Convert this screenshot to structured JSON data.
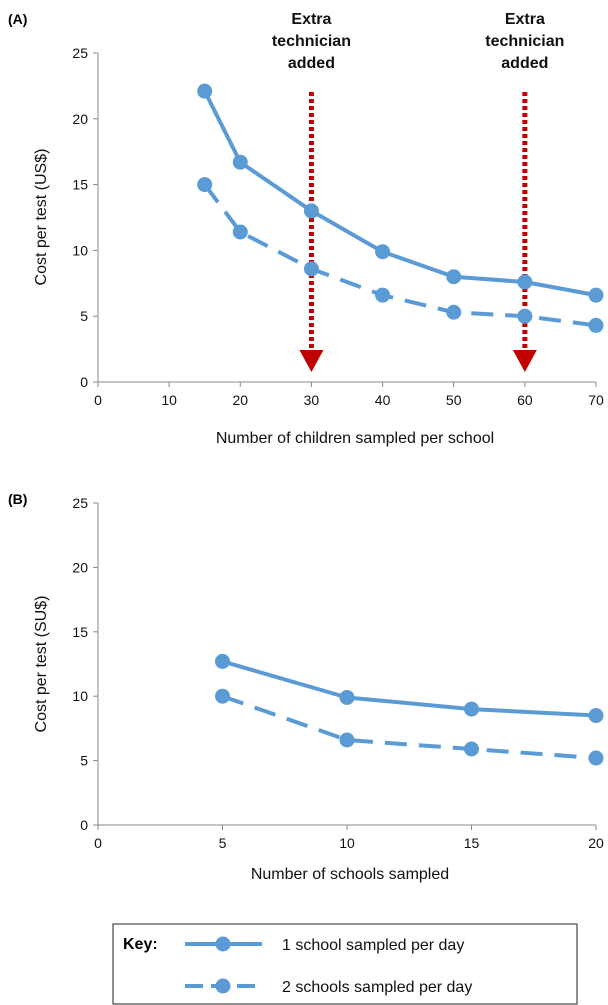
{
  "chart_data": [
    {
      "panel_label": "(A)",
      "type": "line",
      "xlabel": "Number of children sampled per school",
      "ylabel": "Cost per test (US$)",
      "xlim": [
        0,
        70
      ],
      "ylim": [
        0,
        25
      ],
      "xticks": [
        0,
        10,
        20,
        30,
        40,
        50,
        60,
        70
      ],
      "yticks": [
        0,
        5,
        10,
        15,
        20,
        25
      ],
      "grid": false,
      "series": [
        {
          "name": "1 school sampled per day",
          "style": "solid",
          "x": [
            15,
            20,
            30,
            40,
            50,
            60,
            70
          ],
          "y": [
            22.1,
            16.7,
            13.0,
            9.9,
            8.0,
            7.6,
            6.6
          ]
        },
        {
          "name": "2 schools sampled per day",
          "style": "dashed",
          "x": [
            15,
            20,
            30,
            40,
            50,
            60,
            70
          ],
          "y": [
            15.0,
            11.4,
            8.6,
            6.6,
            5.3,
            5.0,
            4.3
          ]
        }
      ],
      "annotations": [
        {
          "text": [
            "Extra",
            "technician",
            "added"
          ],
          "x": 30
        },
        {
          "text": [
            "Extra",
            "technician",
            "added"
          ],
          "x": 60
        }
      ]
    },
    {
      "panel_label": "(B)",
      "type": "line",
      "xlabel": "Number of schools sampled",
      "ylabel": "Cost per test (SU$)",
      "xlim": [
        0,
        20
      ],
      "ylim": [
        0,
        25
      ],
      "xticks": [
        0,
        5,
        10,
        15,
        20
      ],
      "yticks": [
        0,
        5,
        10,
        15,
        20,
        25
      ],
      "grid": false,
      "series": [
        {
          "name": "1 school sampled per day",
          "style": "solid",
          "x": [
            5,
            10,
            15,
            20
          ],
          "y": [
            12.7,
            9.9,
            9.0,
            8.5
          ]
        },
        {
          "name": "2 schools sampled per day",
          "style": "dashed",
          "x": [
            5,
            10,
            15,
            20
          ],
          "y": [
            10.0,
            6.6,
            5.9,
            5.2
          ]
        }
      ]
    }
  ],
  "legend": {
    "title": "Key:",
    "entries": [
      {
        "label": "1 school sampled per day",
        "style": "solid"
      },
      {
        "label": "2 schools sampled per day",
        "style": "dashed"
      }
    ]
  },
  "colors": {
    "series": "#5b9bd5",
    "arrow": "#c00000",
    "axis": "#888888"
  }
}
